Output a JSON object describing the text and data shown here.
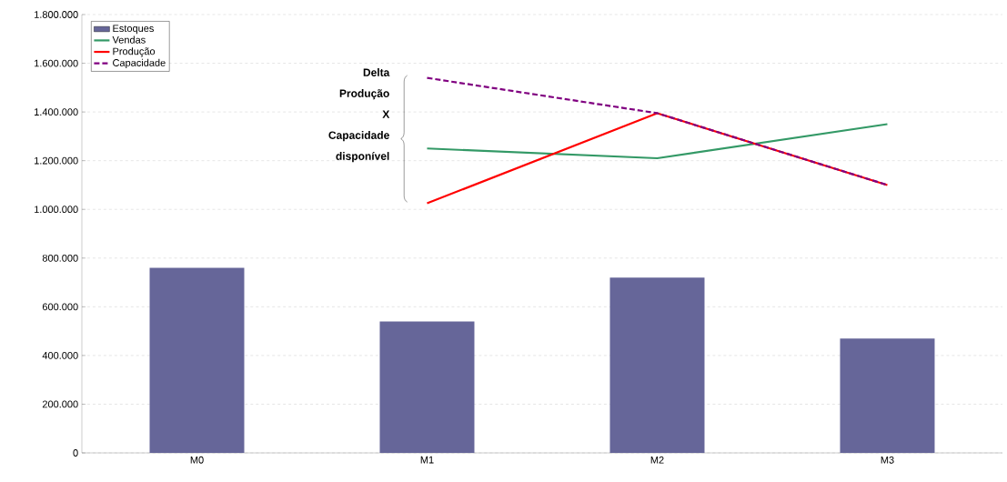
{
  "chart_data": {
    "type": "bar",
    "categories": [
      "M0",
      "M1",
      "M2",
      "M3"
    ],
    "series": [
      {
        "name": "Estoques",
        "color": "#666699",
        "values": [
          760000,
          540000,
          720000,
          470000
        ]
      },
      {
        "name": "Vendas",
        "type": "line",
        "color": "#339966",
        "values": [
          null,
          1250000,
          1210000,
          1350000
        ]
      },
      {
        "name": "Produção",
        "type": "line",
        "color": "#ff0000",
        "values": [
          null,
          1025000,
          1395000,
          1100000
        ]
      },
      {
        "name": "Capacidade",
        "type": "line",
        "color": "#800080",
        "line_style": "dashed",
        "values": [
          null,
          1540000,
          1395000,
          1100000
        ]
      }
    ],
    "ylim": [
      0,
      1800000
    ],
    "yticks": [
      0,
      {
        "value": 200000,
        "label": "200.000"
      },
      {
        "value": 400000,
        "label": "400.000"
      },
      {
        "value": 600000,
        "label": "600.000"
      },
      {
        "value": 800000,
        "label": "800.000"
      },
      {
        "value": 1000000,
        "label": "1.000.000"
      },
      {
        "value": 1200000,
        "label": "1.200.000"
      },
      {
        "value": 1400000,
        "label": "1.400.000"
      },
      {
        "value": 1600000,
        "label": "1.600.000"
      },
      {
        "value": 1800000,
        "label": "1.800.000"
      }
    ],
    "grid": "y",
    "legend": "top left",
    "marker": "none",
    "annotations": [
      "Delta",
      "Produção",
      "X",
      "Capacidade",
      "disponível"
    ]
  }
}
